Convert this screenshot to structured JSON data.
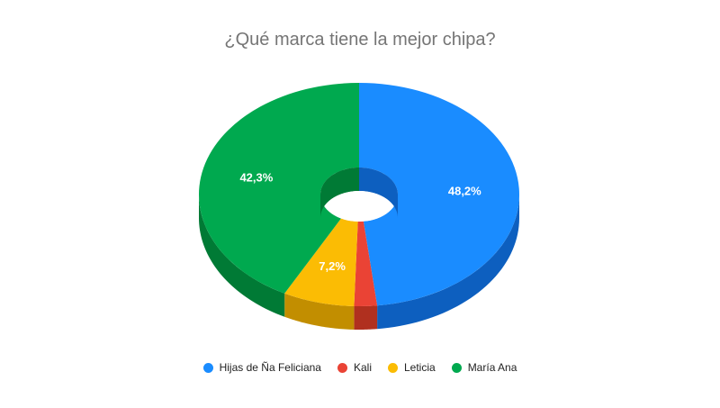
{
  "chart_data": {
    "type": "pie",
    "style": "3d-donut",
    "title": "¿Qué marca tiene la mejor chipa?",
    "legend_position": "bottom",
    "slices": [
      {
        "name": "Hijas de Ña Feliciana",
        "value": 48.2,
        "label": "48,2%",
        "color": "#1a8cff",
        "side_color": "#0d5fbf"
      },
      {
        "name": "Kali",
        "value": 2.3,
        "label": "",
        "color": "#ea4335",
        "side_color": "#b0301f"
      },
      {
        "name": "Leticia",
        "value": 7.2,
        "label": "7,2%",
        "color": "#fbbc04",
        "side_color": "#c28e00"
      },
      {
        "name": "María Ana",
        "value": 42.3,
        "label": "42,3%",
        "color": "#00a94f",
        "side_color": "#007a35"
      }
    ]
  }
}
